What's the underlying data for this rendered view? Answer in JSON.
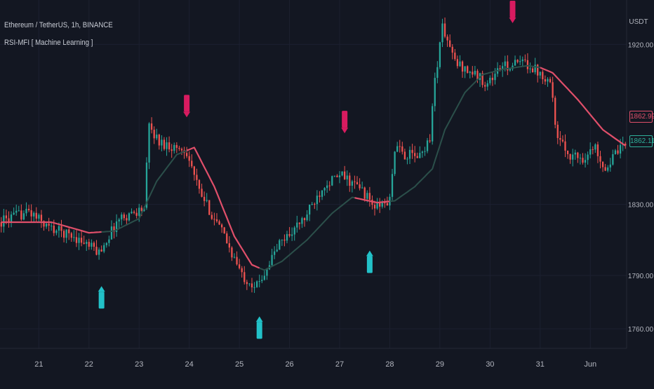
{
  "header": {
    "symbol": "Ethereum / TetherUS, 1h, BINANCE",
    "indicator": "RSI-MFI [ Machine Learning ]",
    "currency": "USDT"
  },
  "price_tags": {
    "ma_value": "1862.99",
    "last_price": "1862.11"
  },
  "colors": {
    "background": "#131722",
    "up_candle": "#26a69a",
    "down_candle": "#ef5350",
    "ma_bearish": "#e04f6a",
    "ma_bullish": "#2b4f4a",
    "buy_marker": "#22c1c8",
    "sell_marker": "#d81b60",
    "text": "#b2b5be"
  },
  "chart_data": {
    "type": "candlestick",
    "title": "Ethereum / TetherUS, 1h, BINANCE",
    "ylabel": "USDT",
    "ylim": [
      1749,
      1945
    ],
    "y_ticks": [
      {
        "value": 1920,
        "label": "1920.00"
      },
      {
        "value": 1830,
        "label": "1830.00"
      },
      {
        "value": 1790,
        "label": "1790.00"
      },
      {
        "value": 1760,
        "label": "1760.00"
      }
    ],
    "x_ticks": [
      {
        "slot": 15,
        "label": "21"
      },
      {
        "slot": 35,
        "label": "22"
      },
      {
        "slot": 55,
        "label": "23"
      },
      {
        "slot": 75,
        "label": "24"
      },
      {
        "slot": 95,
        "label": "25"
      },
      {
        "slot": 115,
        "label": "26"
      },
      {
        "slot": 135,
        "label": "27"
      },
      {
        "slot": 155,
        "label": "28"
      },
      {
        "slot": 175,
        "label": "29"
      },
      {
        "slot": 195,
        "label": "30"
      },
      {
        "slot": 215,
        "label": "31"
      },
      {
        "slot": 235,
        "label": "Jun"
      }
    ],
    "anchors": [
      [
        0,
        1820
      ],
      [
        12,
        1826
      ],
      [
        20,
        1817
      ],
      [
        30,
        1812
      ],
      [
        40,
        1803
      ],
      [
        48,
        1822
      ],
      [
        58,
        1828
      ],
      [
        60,
        1874
      ],
      [
        64,
        1865
      ],
      [
        75,
        1860
      ],
      [
        80,
        1837
      ],
      [
        90,
        1812
      ],
      [
        97,
        1790
      ],
      [
        103,
        1784
      ],
      [
        112,
        1808
      ],
      [
        122,
        1822
      ],
      [
        130,
        1842
      ],
      [
        137,
        1846
      ],
      [
        145,
        1838
      ],
      [
        150,
        1828
      ],
      [
        156,
        1832
      ],
      [
        158,
        1862
      ],
      [
        162,
        1858
      ],
      [
        168,
        1857
      ],
      [
        172,
        1868
      ],
      [
        174,
        1900
      ],
      [
        177,
        1930
      ],
      [
        182,
        1910
      ],
      [
        190,
        1903
      ],
      [
        195,
        1898
      ],
      [
        200,
        1907
      ],
      [
        210,
        1910
      ],
      [
        215,
        1905
      ],
      [
        220,
        1900
      ],
      [
        223,
        1866
      ],
      [
        228,
        1858
      ],
      [
        233,
        1856
      ],
      [
        238,
        1862
      ],
      [
        242,
        1850
      ],
      [
        246,
        1858
      ],
      [
        249,
        1862
      ]
    ],
    "ma_anchors": [
      [
        0,
        1820
      ],
      [
        20,
        1820
      ],
      [
        35,
        1814
      ],
      [
        45,
        1815
      ],
      [
        55,
        1822
      ],
      [
        62,
        1843
      ],
      [
        70,
        1858
      ],
      [
        77,
        1862
      ],
      [
        85,
        1840
      ],
      [
        93,
        1812
      ],
      [
        100,
        1796
      ],
      [
        105,
        1793
      ],
      [
        112,
        1798
      ],
      [
        122,
        1810
      ],
      [
        132,
        1825
      ],
      [
        140,
        1834
      ],
      [
        150,
        1831
      ],
      [
        157,
        1832
      ],
      [
        165,
        1840
      ],
      [
        172,
        1850
      ],
      [
        177,
        1872
      ],
      [
        185,
        1893
      ],
      [
        192,
        1903
      ],
      [
        200,
        1906
      ],
      [
        210,
        1908
      ],
      [
        215,
        1907
      ],
      [
        220,
        1904
      ],
      [
        230,
        1889
      ],
      [
        240,
        1872
      ],
      [
        249,
        1863
      ]
    ],
    "ma_segments": [
      {
        "from": 0,
        "to": 14,
        "trend": "bearish"
      },
      {
        "from": 14,
        "to": 29,
        "trend": "bearish"
      },
      {
        "from": 29,
        "to": 40,
        "trend": "bearish"
      },
      {
        "from": 40,
        "to": 74,
        "trend": "bullish"
      },
      {
        "from": 74,
        "to": 103,
        "trend": "bearish"
      },
      {
        "from": 103,
        "to": 141,
        "trend": "bullish"
      },
      {
        "from": 141,
        "to": 155,
        "trend": "bearish"
      },
      {
        "from": 155,
        "to": 215,
        "trend": "bullish"
      },
      {
        "from": 215,
        "to": 249,
        "trend": "bearish"
      }
    ],
    "signals": [
      {
        "type": "buy",
        "slot": 40,
        "price": 1784
      },
      {
        "type": "sell",
        "slot": 74,
        "price": 1879
      },
      {
        "type": "buy",
        "slot": 103,
        "price": 1767
      },
      {
        "type": "sell",
        "slot": 137,
        "price": 1870
      },
      {
        "type": "buy",
        "slot": 147,
        "price": 1804
      },
      {
        "type": "sell",
        "slot": 204,
        "price": 1932
      }
    ],
    "last_price": 1862.11,
    "ma_last": 1862.99
  }
}
